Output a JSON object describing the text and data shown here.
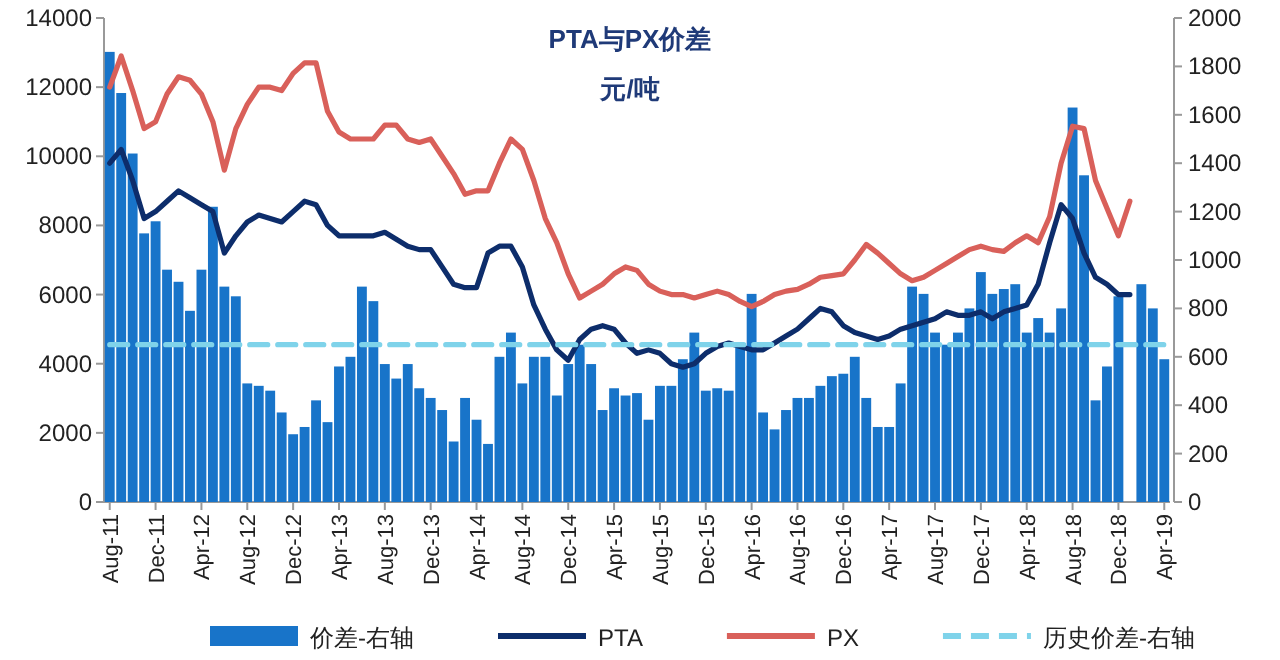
{
  "chart_data": {
    "type": "bar",
    "title": "PTA与PX价差",
    "subtitle": "元/吨",
    "categories": [
      "Aug-11",
      null,
      null,
      null,
      "Dec-11",
      null,
      null,
      null,
      "Apr-12",
      null,
      null,
      null,
      "Aug-12",
      null,
      null,
      null,
      "Dec-12",
      null,
      null,
      null,
      "Apr-13",
      null,
      null,
      null,
      "Aug-13",
      null,
      null,
      null,
      "Dec-13",
      null,
      null,
      null,
      "Apr-14",
      null,
      null,
      null,
      "Aug-14",
      null,
      null,
      null,
      "Dec-14",
      null,
      null,
      null,
      "Apr-15",
      null,
      null,
      null,
      "Aug-15",
      null,
      null,
      null,
      "Dec-15",
      null,
      null,
      null,
      "Apr-16",
      null,
      null,
      null,
      "Aug-16",
      null,
      null,
      null,
      "Dec-16",
      null,
      null,
      null,
      "Apr-17",
      null,
      null,
      null,
      "Aug-17",
      null,
      null,
      null,
      "Dec-17",
      null,
      null,
      null,
      "Apr-18",
      null,
      null,
      null,
      "Aug-18",
      null,
      null,
      null,
      "Dec-18",
      null,
      null,
      null,
      "Apr-19"
    ],
    "series": [
      {
        "name": "价差-右轴",
        "axis": "y2",
        "color": "#1874c9",
        "values": [
          1860,
          1690,
          1440,
          1110,
          1160,
          960,
          910,
          790,
          960,
          1220,
          890,
          850,
          490,
          480,
          460,
          370,
          280,
          310,
          420,
          330,
          560,
          600,
          890,
          830,
          570,
          510,
          570,
          470,
          430,
          380,
          250,
          430,
          340,
          240,
          600,
          700,
          490,
          600,
          600,
          440,
          570,
          650,
          570,
          380,
          470,
          440,
          450,
          340,
          480,
          480,
          590,
          700,
          460,
          470,
          460,
          640,
          860,
          370,
          300,
          380,
          430,
          430,
          480,
          520,
          530,
          600,
          430,
          310,
          310,
          490,
          890,
          860,
          700,
          650,
          700,
          800,
          950,
          860,
          880,
          900,
          700,
          760,
          700,
          800,
          1630,
          1350,
          420,
          560,
          850,
          null,
          900,
          800,
          590
        ]
      },
      {
        "name": "PTA",
        "type": "line",
        "color": "#0d2d6b",
        "values": [
          9800,
          10200,
          9300,
          8200,
          8400,
          8700,
          9000,
          8800,
          8600,
          8400,
          7200,
          7700,
          8100,
          8300,
          8200,
          8100,
          8400,
          8700,
          8600,
          8000,
          7700,
          7700,
          7700,
          7700,
          7800,
          7600,
          7400,
          7300,
          7300,
          6800,
          6300,
          6200,
          6200,
          7200,
          7400,
          7400,
          6800,
          5700,
          5000,
          4400,
          4100,
          4700,
          5000,
          5100,
          5000,
          4600,
          4300,
          4400,
          4300,
          4000,
          3900,
          4000,
          4300,
          4500,
          4600,
          4500,
          4400,
          4400,
          4600,
          4800,
          5000,
          5300,
          5600,
          5500,
          5100,
          4900,
          4800,
          4700,
          4800,
          5000,
          5100,
          5200,
          5300,
          5500,
          5400,
          5400,
          5500,
          5300,
          5500,
          5600,
          5700,
          6300,
          7500,
          8600,
          8200,
          7200,
          6500,
          6300,
          6000,
          6000,
          null,
          null,
          null
        ]
      },
      {
        "name": "PX",
        "type": "line",
        "color": "#d9605a",
        "values": [
          12000,
          12900,
          11900,
          10800,
          11000,
          11800,
          12300,
          12200,
          11800,
          11000,
          9600,
          10800,
          11500,
          12000,
          12000,
          11900,
          12400,
          12700,
          12700,
          11300,
          10700,
          10500,
          10500,
          10500,
          10900,
          10900,
          10500,
          10400,
          10500,
          10000,
          9500,
          8900,
          9000,
          9000,
          9800,
          10500,
          10200,
          9300,
          8200,
          7500,
          6600,
          5900,
          6100,
          6300,
          6600,
          6800,
          6700,
          6300,
          6100,
          6000,
          6000,
          5900,
          6000,
          6100,
          6000,
          5800,
          5650,
          5800,
          6000,
          6100,
          6150,
          6300,
          6500,
          6550,
          6600,
          7000,
          7450,
          7200,
          6900,
          6600,
          6400,
          6500,
          6700,
          6900,
          7100,
          7300,
          7400,
          7300,
          7250,
          7500,
          7700,
          7500,
          8250,
          9800,
          10870,
          10800,
          9300,
          8500,
          7700,
          8700,
          null,
          null,
          null
        ]
      },
      {
        "name": "历史价差-右轴",
        "type": "line",
        "axis": "y2",
        "line_style": "dashed",
        "color": "#7fd3ea",
        "values": [
          650,
          650,
          650,
          650,
          650,
          650,
          650,
          650,
          650,
          650,
          650,
          650,
          650,
          650,
          650,
          650,
          650,
          650,
          650,
          650,
          650,
          650,
          650,
          650,
          650,
          650,
          650,
          650,
          650,
          650,
          650,
          650,
          650,
          650,
          650,
          650,
          650,
          650,
          650,
          650,
          650,
          650,
          650,
          650,
          650,
          650,
          650,
          650,
          650,
          650,
          650,
          650,
          650,
          650,
          650,
          650,
          650,
          650,
          650,
          650,
          650,
          650,
          650,
          650,
          650,
          650,
          650,
          650,
          650,
          650,
          650,
          650,
          650,
          650,
          650,
          650,
          650,
          650,
          650,
          650,
          650,
          650,
          650,
          650,
          650,
          650,
          650,
          650,
          650,
          650,
          650,
          650,
          650
        ]
      }
    ],
    "ylim": [
      0,
      14000
    ],
    "yticks": [
      0,
      2000,
      4000,
      6000,
      8000,
      10000,
      12000,
      14000
    ],
    "y2lim": [
      0,
      2000
    ],
    "y2ticks": [
      0,
      200,
      400,
      600,
      800,
      1000,
      1200,
      1400,
      1600,
      1800,
      2000
    ],
    "grid": false,
    "legend": "bottom"
  }
}
